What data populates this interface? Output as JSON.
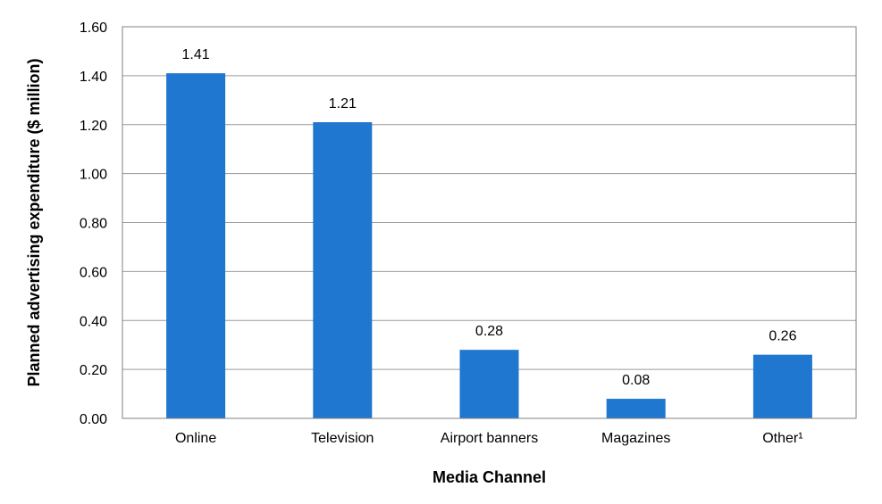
{
  "chart_data": {
    "type": "bar",
    "title": "",
    "xlabel": "Media Channel",
    "ylabel": "Planned advertising expenditure ($ million)",
    "categories": [
      "Online",
      "Television",
      "Airport banners",
      "Magazines",
      "Other¹"
    ],
    "values": [
      1.41,
      1.21,
      0.28,
      0.08,
      0.26
    ],
    "data_labels": [
      "1.41",
      "1.21",
      "0.28",
      "0.08",
      "0.26"
    ],
    "ylim": [
      0,
      1.6
    ],
    "yticks": [
      0,
      0.2,
      0.4,
      0.6,
      0.8,
      1.0,
      1.2,
      1.4,
      1.6
    ],
    "ytick_labels": [
      "0.00",
      "0.20",
      "0.40",
      "0.60",
      "0.80",
      "1.00",
      "1.20",
      "1.40",
      "1.60"
    ],
    "grid": true,
    "legend": "none",
    "colors": {
      "bar": "#1f77d0",
      "grid": "#9a9a9a",
      "frame": "#808080"
    }
  }
}
